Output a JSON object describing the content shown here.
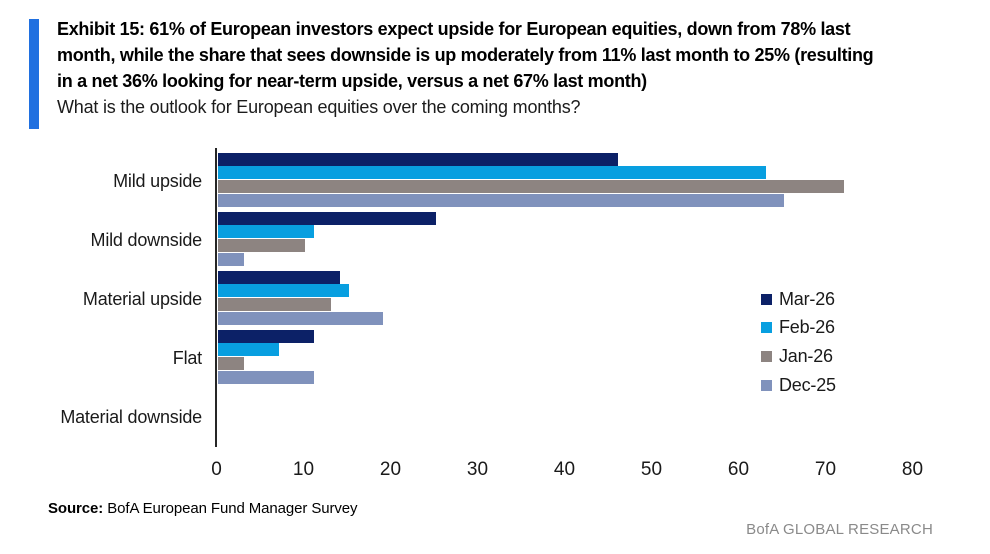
{
  "header": {
    "accent_color": "#2070e0",
    "title_lines": [
      "Exhibit 15: 61% of European investors expect upside for European equities, down from 78% last",
      "month, while the share that sees downside is up moderately from 11% last month to 25% (resulting",
      "in a net 36% looking for near-term upside, versus a net 67% last month)"
    ],
    "subtitle": "What is the outlook for European equities over the coming months?"
  },
  "chart_data": {
    "type": "bar",
    "orientation": "horizontal",
    "categories": [
      "Mild upside",
      "Mild downside",
      "Material upside",
      "Flat",
      "Material downside"
    ],
    "series": [
      {
        "name": "Mar-26",
        "color": "#0c2167",
        "values": [
          46,
          25,
          14,
          11,
          0
        ]
      },
      {
        "name": "Feb-26",
        "color": "#089fe0",
        "values": [
          63,
          11,
          15,
          7,
          0
        ]
      },
      {
        "name": "Jan-26",
        "color": "#8d8481",
        "values": [
          72,
          10,
          13,
          3,
          0
        ]
      },
      {
        "name": "Dec-25",
        "color": "#8092bc",
        "values": [
          65,
          3,
          19,
          11,
          0
        ]
      }
    ],
    "xlim": [
      0,
      80
    ],
    "xticks": [
      0,
      10,
      20,
      30,
      40,
      50,
      60,
      70,
      80
    ],
    "legend_position": "center-right",
    "grid": false,
    "axis_color": "#262626"
  },
  "footer": {
    "source_label": "Source:",
    "source_text": " BofA European Fund Manager Survey",
    "brand": "BofA GLOBAL RESEARCH"
  }
}
